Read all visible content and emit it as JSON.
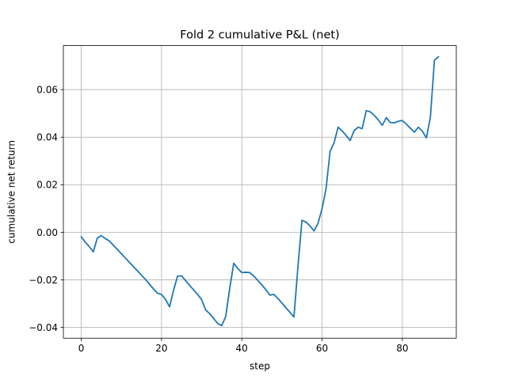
{
  "chart_data": {
    "type": "line",
    "title": "Fold 2 cumulative P&L (net)",
    "xlabel": "step",
    "ylabel": "cumulative net return",
    "xlim": [
      -4.45,
      93.45
    ],
    "ylim": [
      -0.0445,
      0.0785
    ],
    "xticks": [
      0,
      20,
      40,
      60,
      80
    ],
    "xtick_labels": [
      "0",
      "20",
      "40",
      "60",
      "80"
    ],
    "yticks": [
      -0.04,
      -0.02,
      0.0,
      0.02,
      0.04,
      0.06
    ],
    "ytick_labels": [
      "−0.04",
      "−0.02",
      "0.00",
      "0.02",
      "0.04",
      "0.06"
    ],
    "grid": true,
    "series": [
      {
        "color": "#1f77b4",
        "x": [
          0,
          1,
          2,
          3,
          4,
          5,
          6,
          7,
          8,
          9,
          10,
          11,
          12,
          13,
          14,
          15,
          16,
          17,
          18,
          19,
          20,
          21,
          22,
          23,
          24,
          25,
          26,
          27,
          28,
          29,
          30,
          31,
          32,
          33,
          34,
          35,
          36,
          37,
          38,
          39,
          40,
          41,
          42,
          43,
          44,
          45,
          46,
          47,
          48,
          49,
          50,
          51,
          52,
          53,
          54,
          55,
          56,
          57,
          58,
          59,
          60,
          61,
          62,
          63,
          64,
          65,
          66,
          67,
          68,
          69,
          70,
          71,
          72,
          73,
          74,
          75,
          76,
          77,
          78,
          79,
          80,
          81,
          82,
          83,
          84,
          85,
          86,
          87,
          88,
          89
        ],
        "y": [
          -0.0019,
          -0.0041,
          -0.006,
          -0.0082,
          -0.0024,
          -0.0014,
          -0.0026,
          -0.0036,
          -0.0054,
          -0.0072,
          -0.009,
          -0.0108,
          -0.0126,
          -0.0144,
          -0.0162,
          -0.018,
          -0.0198,
          -0.0218,
          -0.0238,
          -0.0256,
          -0.0261,
          -0.0282,
          -0.0313,
          -0.0244,
          -0.0184,
          -0.0183,
          -0.0203,
          -0.0223,
          -0.0242,
          -0.0261,
          -0.0283,
          -0.0326,
          -0.0342,
          -0.0362,
          -0.0383,
          -0.0392,
          -0.0354,
          -0.0235,
          -0.013,
          -0.0152,
          -0.0169,
          -0.0168,
          -0.0169,
          -0.0184,
          -0.0202,
          -0.0221,
          -0.0241,
          -0.0264,
          -0.0261,
          -0.0278,
          -0.0297,
          -0.0317,
          -0.0336,
          -0.0356,
          -0.0143,
          0.0051,
          0.0043,
          0.0027,
          0.0006,
          0.0038,
          0.0099,
          0.0184,
          0.034,
          0.0377,
          0.0442,
          0.0427,
          0.0407,
          0.0386,
          0.0428,
          0.0442,
          0.0436,
          0.0511,
          0.0507,
          0.0492,
          0.0473,
          0.045,
          0.0482,
          0.0462,
          0.046,
          0.0467,
          0.047,
          0.0455,
          0.0438,
          0.0421,
          0.0442,
          0.0425,
          0.0397,
          0.0485,
          0.0723,
          0.0738
        ]
      }
    ]
  }
}
